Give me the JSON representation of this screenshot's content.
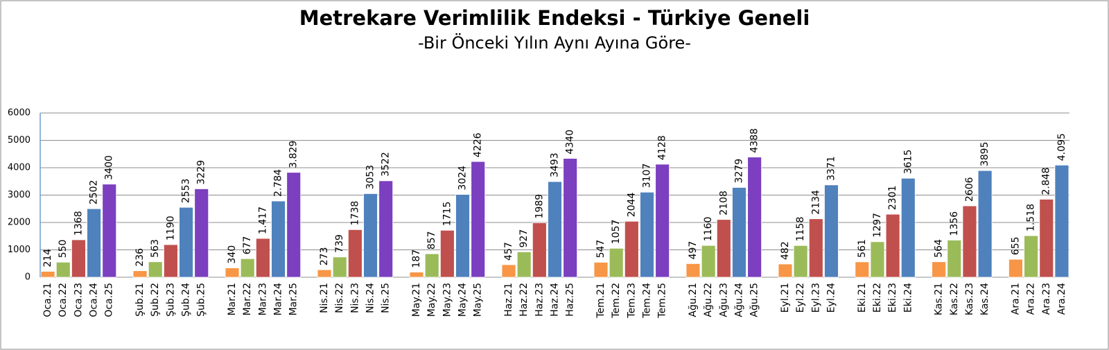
{
  "chart_data": {
    "type": "bar",
    "title": "Metrekare Verimlilik Endeksi - Türkiye Geneli",
    "subtitle": "-Bir Önceki Yılın Aynı Ayına Göre-",
    "categories": [
      "Oca.21",
      "Oca.22",
      "Oca.23",
      "Oca.24",
      "Oca.25",
      null,
      "Şub.21",
      "Şub.22",
      "Şub.23",
      "Şub.24",
      "Şub.25",
      null,
      "Mar.21",
      "Mar.22",
      "Mar.23",
      "Mar.24",
      "Mar.25",
      null,
      "Nis.21",
      "Nis.22",
      "Nis.23",
      "Nis.24",
      "Nis.25",
      null,
      "May.21",
      "May.22",
      "May.23",
      "May.24",
      "May.25",
      null,
      "Haz.21",
      "Haz.22",
      "Haz.23",
      "Haz.24",
      "Haz.25",
      null,
      "Tem.21",
      "Tem.22",
      "Tem.23",
      "Tem.24",
      "Tem.25",
      null,
      "Ağu.21",
      "Ağu.22",
      "Ağu.23",
      "Ağu.24",
      "Ağu.25",
      null,
      "Eyl.21",
      "Eyl.22",
      "Eyl.23",
      "Eyl.24",
      null,
      "Eki.21",
      "Eki.22",
      "Eki.23",
      "Eki.24",
      null,
      "Kas.21",
      "Kas.22",
      "Kas.23",
      "Kas.24",
      null,
      "Ara.21",
      "Ara.22",
      "Ara.23",
      "Ara.24"
    ],
    "values": [
      214,
      550,
      1368,
      2502,
      3400,
      null,
      236,
      563,
      1190,
      2553,
      3229,
      null,
      340,
      677,
      1417,
      2784,
      3829,
      null,
      273,
      739,
      1738,
      3053,
      3522,
      null,
      187,
      857,
      1715,
      3024,
      4226,
      null,
      457,
      927,
      1989,
      3493,
      4340,
      null,
      547,
      1057,
      2044,
      3107,
      4128,
      null,
      497,
      1160,
      2108,
      3279,
      4388,
      null,
      482,
      1158,
      2134,
      3371,
      null,
      561,
      1297,
      2301,
      3615,
      null,
      564,
      1356,
      2606,
      3895,
      null,
      655,
      1518,
      2848,
      4095
    ],
    "value_labels": [
      "214",
      "550",
      "1368",
      "2502",
      "3400",
      null,
      "236",
      "563",
      "1190",
      "2553",
      "3229",
      null,
      "340",
      "677",
      "1.417",
      "2.784",
      "3.829",
      null,
      "273",
      "739",
      "1738",
      "3053",
      "3522",
      null,
      "187",
      "857",
      "1715",
      "3024",
      "4226",
      null,
      "457",
      "927",
      "1989",
      "3493",
      "4340",
      null,
      "547",
      "1057",
      "2044",
      "3107",
      "4128",
      null,
      "497",
      "1160",
      "2108",
      "3279",
      "4388",
      null,
      "482",
      "1158",
      "2134",
      "3371",
      null,
      "561",
      "1297",
      "2301",
      "3615",
      null,
      "564",
      "1356",
      "2606",
      "3895",
      null,
      "655",
      "1.518",
      "2.848",
      "4.095"
    ],
    "colors": [
      "#f79646",
      "#9bbb59",
      "#c0504d",
      "#4f81bd",
      "#7b3fbf",
      null,
      "#f79646",
      "#9bbb59",
      "#c0504d",
      "#4f81bd",
      "#7b3fbf",
      null,
      "#f79646",
      "#9bbb59",
      "#c0504d",
      "#4f81bd",
      "#7b3fbf",
      null,
      "#f79646",
      "#9bbb59",
      "#c0504d",
      "#4f81bd",
      "#7b3fbf",
      null,
      "#f79646",
      "#9bbb59",
      "#c0504d",
      "#4f81bd",
      "#7b3fbf",
      null,
      "#f79646",
      "#9bbb59",
      "#c0504d",
      "#4f81bd",
      "#7b3fbf",
      null,
      "#f79646",
      "#9bbb59",
      "#c0504d",
      "#4f81bd",
      "#7b3fbf",
      null,
      "#f79646",
      "#9bbb59",
      "#c0504d",
      "#4f81bd",
      "#7b3fbf",
      null,
      "#f79646",
      "#9bbb59",
      "#c0504d",
      "#4f81bd",
      null,
      "#f79646",
      "#9bbb59",
      "#c0504d",
      "#4f81bd",
      null,
      "#f79646",
      "#9bbb59",
      "#c0504d",
      "#4f81bd",
      null,
      "#f79646",
      "#9bbb59",
      "#c0504d",
      "#4f81bd"
    ],
    "ylim": [
      0,
      6000
    ],
    "yticks": [
      0,
      1000,
      2000,
      3000,
      4000,
      5000,
      6000
    ],
    "grid": true
  }
}
